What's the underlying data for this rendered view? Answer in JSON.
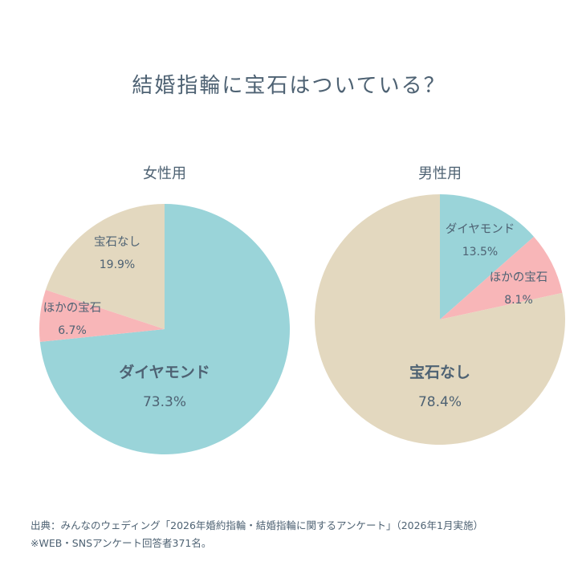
{
  "title": "結婚指輪に宝石はついている？",
  "colors": {
    "diamond": "#9ad4d9",
    "other_gem": "#f8b6b8",
    "no_gem": "#e3d8bf",
    "text": "#4e6273"
  },
  "chart_data": [
    {
      "type": "pie",
      "title": "女性用",
      "slices": [
        {
          "label": "ダイヤモンド",
          "value": 73.3,
          "value_text": "73.3%",
          "color": "#9ad4d9"
        },
        {
          "label": "ほかの宝石",
          "value": 6.7,
          "value_text": "6.7%",
          "color": "#f8b6b8"
        },
        {
          "label": "宝石なし",
          "value": 19.9,
          "value_text": "19.9%",
          "color": "#e3d8bf"
        }
      ]
    },
    {
      "type": "pie",
      "title": "男性用",
      "slices": [
        {
          "label": "ダイヤモンド",
          "value": 13.5,
          "value_text": "13.5%",
          "color": "#9ad4d9"
        },
        {
          "label": "ほかの宝石",
          "value": 8.1,
          "value_text": "8.1%",
          "color": "#f8b6b8"
        },
        {
          "label": "宝石なし",
          "value": 78.4,
          "value_text": "78.4%",
          "color": "#e3d8bf"
        }
      ]
    }
  ],
  "footer": {
    "source": "出典：みんなのウェディング「2026年婚約指輪・結婚指輪に関するアンケート」（2026年1月実施）",
    "note": "※WEB・SNSアンケート回答者371名。"
  }
}
